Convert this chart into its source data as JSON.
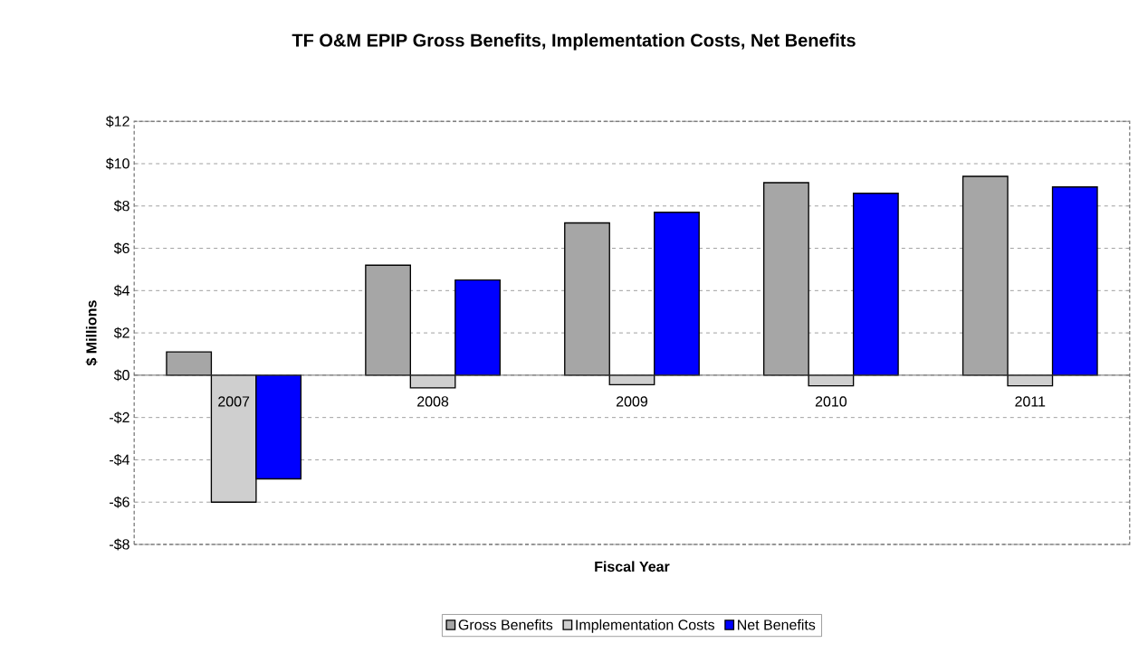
{
  "chart_data": {
    "type": "bar",
    "title": "TF O&M EPIP Gross Benefits, Implementation Costs, Net Benefits",
    "xlabel": "Fiscal Year",
    "ylabel": "$ Millions",
    "categories": [
      "2007",
      "2008",
      "2009",
      "2010",
      "2011"
    ],
    "series": [
      {
        "name": "Gross Benefits",
        "color": "#a6a6a6",
        "values": [
          1.1,
          5.2,
          7.2,
          9.1,
          9.4
        ]
      },
      {
        "name": "Implementation Costs",
        "color": "#cfcfcf",
        "values": [
          -6.0,
          -0.6,
          -0.45,
          -0.5,
          -0.5
        ]
      },
      {
        "name": "Net Benefits",
        "color": "#0000ff",
        "values": [
          -4.9,
          4.5,
          7.7,
          8.6,
          8.9
        ]
      }
    ],
    "ylim": [
      -8,
      12
    ],
    "yticks": [
      {
        "value": -8,
        "label": "-$8"
      },
      {
        "value": -6,
        "label": "-$6"
      },
      {
        "value": -4,
        "label": "-$4"
      },
      {
        "value": -2,
        "label": "-$2"
      },
      {
        "value": 0,
        "label": "$0"
      },
      {
        "value": 2,
        "label": "$2"
      },
      {
        "value": 4,
        "label": "$4"
      },
      {
        "value": 6,
        "label": "$6"
      },
      {
        "value": 8,
        "label": "$8"
      },
      {
        "value": 10,
        "label": "$10"
      },
      {
        "value": 12,
        "label": "$12"
      }
    ],
    "grid": "y",
    "legend": "bottom"
  }
}
